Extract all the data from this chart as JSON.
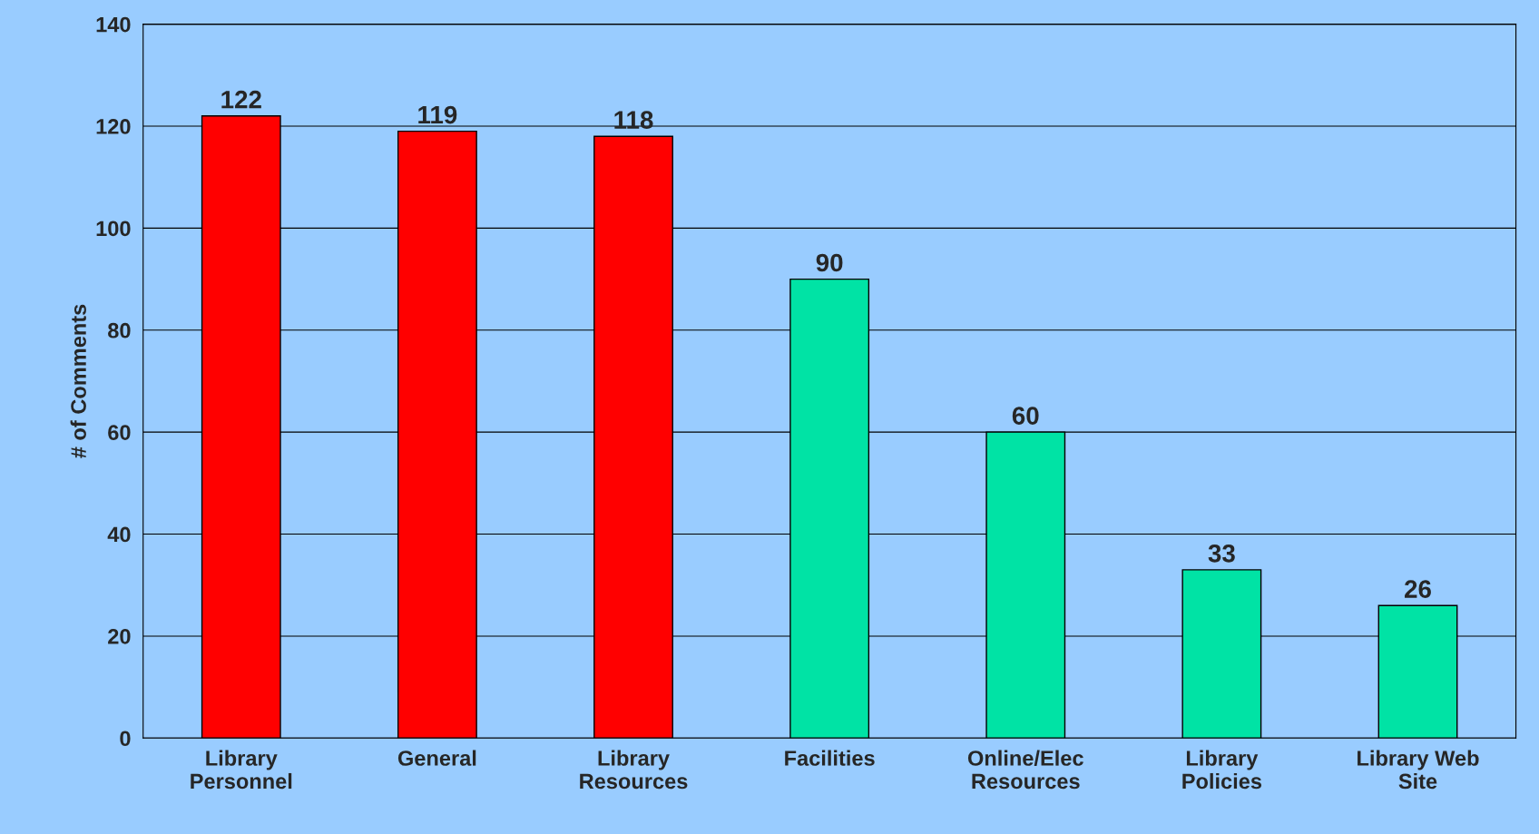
{
  "chart_data": {
    "type": "bar",
    "ylabel": "# of Comments",
    "categories": [
      "Library\nPersonnel",
      "General",
      "Library\nResources",
      "Facilities",
      "Online/Elec\nResources",
      "Library\nPolicies",
      "Library Web\nSite"
    ],
    "values": [
      122,
      119,
      118,
      90,
      60,
      33,
      26
    ],
    "colors": [
      "#ff0000",
      "#ff0000",
      "#ff0000",
      "#00e3a5",
      "#00e3a5",
      "#00e3a5",
      "#00e3a5"
    ],
    "ylim": [
      0,
      140
    ],
    "yticks": [
      0,
      20,
      40,
      60,
      80,
      100,
      120,
      140
    ],
    "grid": "y",
    "data_labels": true
  }
}
